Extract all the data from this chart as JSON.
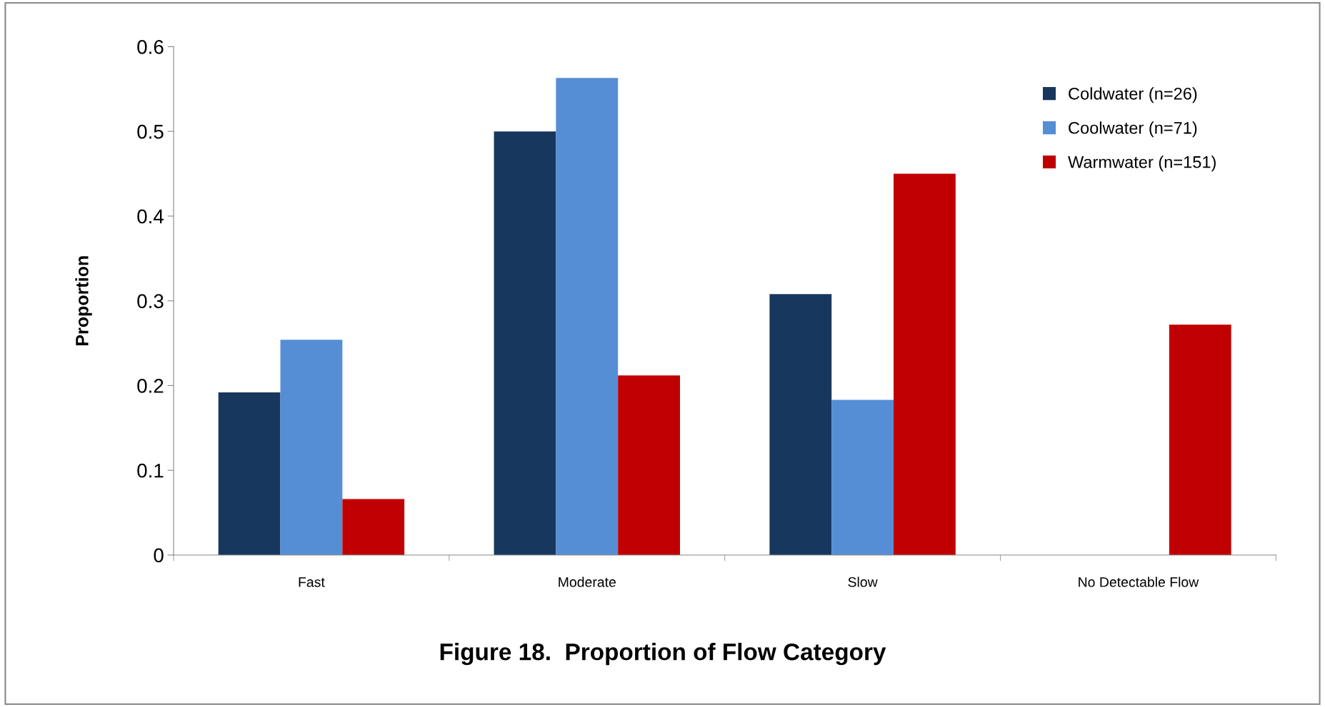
{
  "chart_data": {
    "type": "bar",
    "title": "Figure 18.  Proportion of Flow Category",
    "ylabel": "Proportion",
    "categories": [
      "Fast",
      "Moderate",
      "Slow",
      "No Detectable Flow"
    ],
    "series": [
      {
        "name": "Coldwater (n=26)",
        "color": "#17375e",
        "values": [
          0.192,
          0.5,
          0.308,
          0
        ]
      },
      {
        "name": "Coolwater (n=71)",
        "color": "#558ed5",
        "values": [
          0.254,
          0.563,
          0.183,
          0
        ]
      },
      {
        "name": "Warmwater (n=151)",
        "color": "#c00000",
        "values": [
          0.066,
          0.212,
          0.45,
          0.272
        ]
      }
    ],
    "ylim": [
      0,
      0.6
    ],
    "yticks": [
      0,
      0.1,
      0.2,
      0.3,
      0.4,
      0.5,
      0.6
    ],
    "grid": false,
    "legend": "top right"
  }
}
